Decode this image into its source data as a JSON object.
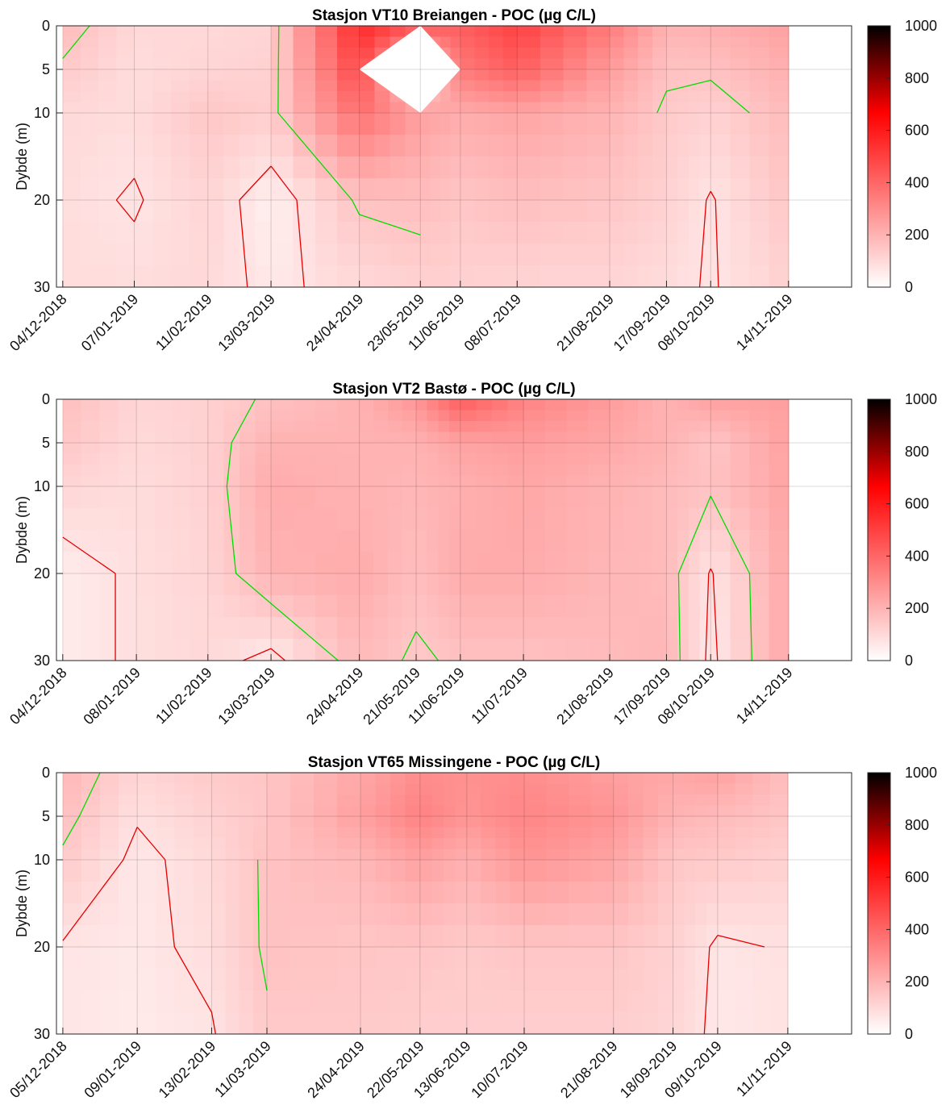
{
  "chart_data": [
    {
      "type": "heatmap",
      "title": "Stasjon VT10 Breiangen - POC (µg C/L)",
      "ylabel": "Dybde (m)",
      "xlabel": "",
      "ylim": [
        0,
        30
      ],
      "yticks": [
        0,
        5,
        10,
        20,
        30
      ],
      "colorbar": {
        "min": 0,
        "max": 1000,
        "ticks": [
          0,
          200,
          400,
          600,
          800,
          1000
        ]
      },
      "dates": [
        "04/12-2018",
        "07/01-2019",
        "11/02-2019",
        "13/03-2019",
        "24/04-2019",
        "23/05-2019",
        "11/06-2019",
        "08/07-2019",
        "21/08-2019",
        "17/09-2019",
        "08/10-2019",
        "14/11-2019"
      ],
      "depths": [
        0,
        5,
        10,
        20,
        30
      ],
      "values": [
        [
          180,
          100,
          100,
          110,
          560,
          450,
          420,
          500,
          350,
          200,
          210,
          250
        ],
        [
          140,
          90,
          110,
          120,
          480,
          0,
          350,
          420,
          260,
          160,
          160,
          210
        ],
        [
          100,
          90,
          150,
          130,
          380,
          250,
          220,
          240,
          200,
          140,
          120,
          180
        ],
        [
          90,
          70,
          110,
          40,
          160,
          170,
          150,
          170,
          150,
          120,
          70,
          150
        ],
        [
          90,
          90,
          100,
          60,
          100,
          120,
          120,
          110,
          110,
          90,
          70,
          120
        ]
      ],
      "missing": [
        [
          1,
          5
        ]
      ],
      "contour_levels": [
        {
          "level": 75,
          "color": "#e60000"
        },
        {
          "level": 150,
          "color": "#00dd00"
        }
      ]
    },
    {
      "type": "heatmap",
      "title": "Stasjon VT2 Bastø - POC (µg C/L)",
      "ylabel": "Dybde (m)",
      "xlabel": "",
      "ylim": [
        0,
        30
      ],
      "yticks": [
        0,
        5,
        10,
        20,
        30
      ],
      "colorbar": {
        "min": 0,
        "max": 1000,
        "ticks": [
          0,
          200,
          400,
          600,
          800,
          1000
        ]
      },
      "dates": [
        "04/12-2018",
        "08/01-2019",
        "11/02-2019",
        "13/03-2019",
        "24/04-2019",
        "21/05-2019",
        "11/06-2019",
        "11/07-2019",
        "21/08-2019",
        "17/09-2019",
        "08/10-2019",
        "14/11-2019"
      ],
      "depths": [
        0,
        5,
        10,
        20,
        30
      ],
      "values": [
        [
          170,
          110,
          120,
          160,
          200,
          280,
          430,
          330,
          260,
          200,
          250,
          250
        ],
        [
          150,
          100,
          120,
          200,
          200,
          200,
          240,
          260,
          230,
          200,
          150,
          250
        ],
        [
          110,
          90,
          120,
          220,
          200,
          190,
          210,
          230,
          200,
          180,
          160,
          240
        ],
        [
          50,
          85,
          110,
          200,
          220,
          170,
          220,
          220,
          190,
          180,
          70,
          230
        ],
        [
          50,
          85,
          100,
          55,
          180,
          140,
          160,
          160,
          180,
          190,
          60,
          230
        ]
      ],
      "contour_levels": [
        {
          "level": 75,
          "color": "#e60000"
        },
        {
          "level": 150,
          "color": "#00dd00"
        }
      ]
    },
    {
      "type": "heatmap",
      "title": "Stasjon VT65 Missingene - POC (µg C/L)",
      "ylabel": "Dybde (m)",
      "xlabel": "",
      "ylim": [
        0,
        30
      ],
      "yticks": [
        0,
        5,
        10,
        20,
        30
      ],
      "colorbar": {
        "min": 0,
        "max": 1000,
        "ticks": [
          0,
          200,
          400,
          600,
          800,
          1000
        ]
      },
      "dates": [
        "05/12-2018",
        "09/01-2019",
        "13/02-2019",
        "11/03-2019",
        "24/04-2019",
        "22/05-2019",
        "13/06-2019",
        "10/07-2019",
        "21/08-2019",
        "18/09-2019",
        "09/10-2019",
        "11/11-2019"
      ],
      "depths": [
        0,
        5,
        10,
        20,
        30
      ],
      "values": [
        [
          190,
          110,
          140,
          150,
          230,
          300,
          290,
          300,
          250,
          230,
          250,
          170
        ],
        [
          170,
          80,
          120,
          150,
          250,
          330,
          280,
          320,
          280,
          200,
          180,
          150
        ],
        [
          140,
          60,
          100,
          160,
          190,
          250,
          210,
          280,
          240,
          150,
          140,
          120
        ],
        [
          70,
          60,
          90,
          160,
          150,
          150,
          140,
          150,
          150,
          120,
          65,
          80
        ],
        [
          65,
          55,
          70,
          140,
          140,
          130,
          130,
          130,
          130,
          110,
          60,
          75
        ]
      ],
      "contour_levels": [
        {
          "level": 75,
          "color": "#e60000"
        },
        {
          "level": 150,
          "color": "#00dd00"
        }
      ]
    }
  ]
}
